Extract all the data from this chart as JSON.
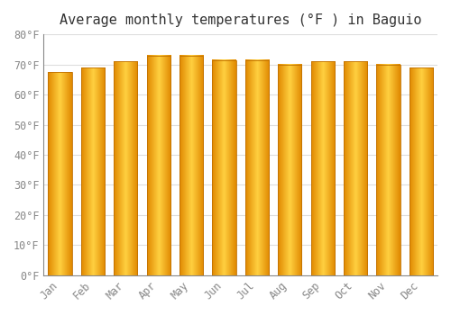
{
  "title": "Average monthly temperatures (°F ) in Baguio",
  "months": [
    "Jan",
    "Feb",
    "Mar",
    "Apr",
    "May",
    "Jun",
    "Jul",
    "Aug",
    "Sep",
    "Oct",
    "Nov",
    "Dec"
  ],
  "values": [
    67.5,
    69.0,
    71.0,
    73.0,
    73.0,
    71.5,
    71.5,
    70.0,
    71.0,
    71.0,
    70.0,
    69.0
  ],
  "bar_color_center": "#FFD040",
  "bar_color_edge": "#E08800",
  "background_color": "#FFFFFF",
  "plot_bg_color": "#FFFFFF",
  "grid_color": "#DDDDDD",
  "ylim": [
    0,
    80
  ],
  "yticks": [
    0,
    10,
    20,
    30,
    40,
    50,
    60,
    70,
    80
  ],
  "ytick_labels": [
    "0°F",
    "10°F",
    "20°F",
    "30°F",
    "40°F",
    "50°F",
    "60°F",
    "70°F",
    "80°F"
  ],
  "title_fontsize": 11,
  "tick_fontsize": 8.5,
  "tick_color": "#888888",
  "font_family": "monospace",
  "bar_width": 0.72
}
